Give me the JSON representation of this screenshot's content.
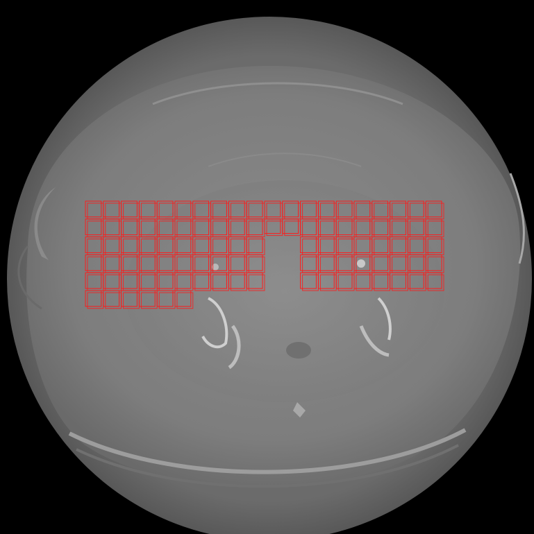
{
  "image": {
    "description_colors": {
      "background": "#000000",
      "body_outer": "#5f5f5f",
      "body_inner": "#7a7a7a",
      "soft_tissue": "#828282",
      "bone": "#cfcfcf",
      "grid_stroke": "#ff1a1a"
    },
    "grid": {
      "columns": 20,
      "rows_left": 6,
      "rows_right": 5,
      "rows_center": 2
    }
  }
}
